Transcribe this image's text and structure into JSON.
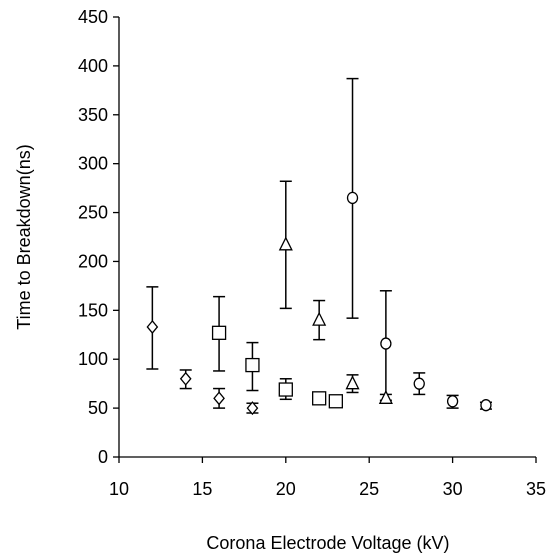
{
  "chart_data": {
    "type": "scatter",
    "xlabel": "Corona Electrode Voltage (kV)",
    "ylabel": "Time to Breakdown(ns)",
    "xlim": [
      10,
      35
    ],
    "ylim": [
      0,
      450
    ],
    "xticks": [
      10,
      15,
      20,
      25,
      30,
      35
    ],
    "yticks": [
      0,
      50,
      100,
      150,
      200,
      250,
      300,
      350,
      400,
      450
    ],
    "grid": false,
    "colors": {
      "marker": "#000000",
      "axis": "#000000"
    },
    "series": [
      {
        "marker": "diamond",
        "points": [
          {
            "x": 12,
            "y": 133,
            "low": 90,
            "high": 174
          },
          {
            "x": 14,
            "y": 80,
            "low": 70,
            "high": 89
          },
          {
            "x": 16,
            "y": 60,
            "low": 50,
            "high": 70
          },
          {
            "x": 18,
            "y": 50,
            "low": 45,
            "high": 55
          }
        ]
      },
      {
        "marker": "square",
        "points": [
          {
            "x": 16,
            "y": 127,
            "low": 88,
            "high": 164
          },
          {
            "x": 18,
            "y": 94,
            "low": 68,
            "high": 117
          },
          {
            "x": 20,
            "y": 69,
            "low": 59,
            "high": 80
          },
          {
            "x": 22,
            "y": 60,
            "low": 55,
            "high": 65
          },
          {
            "x": 23,
            "y": 57,
            "low": 53,
            "high": 62
          }
        ]
      },
      {
        "marker": "triangle",
        "points": [
          {
            "x": 20,
            "y": 217,
            "low": 152,
            "high": 282
          },
          {
            "x": 22,
            "y": 140,
            "low": 120,
            "high": 160
          },
          {
            "x": 24,
            "y": 75,
            "low": 66,
            "high": 84
          },
          {
            "x": 26,
            "y": 60,
            "low": 56,
            "high": 64
          }
        ]
      },
      {
        "marker": "circle",
        "points": [
          {
            "x": 24,
            "y": 265,
            "low": 142,
            "high": 387
          },
          {
            "x": 26,
            "y": 116,
            "low": 58,
            "high": 170
          },
          {
            "x": 28,
            "y": 75,
            "low": 64,
            "high": 86
          },
          {
            "x": 30,
            "y": 57,
            "low": 50,
            "high": 63
          },
          {
            "x": 32,
            "y": 53,
            "low": 49,
            "high": 56
          }
        ]
      }
    ]
  }
}
